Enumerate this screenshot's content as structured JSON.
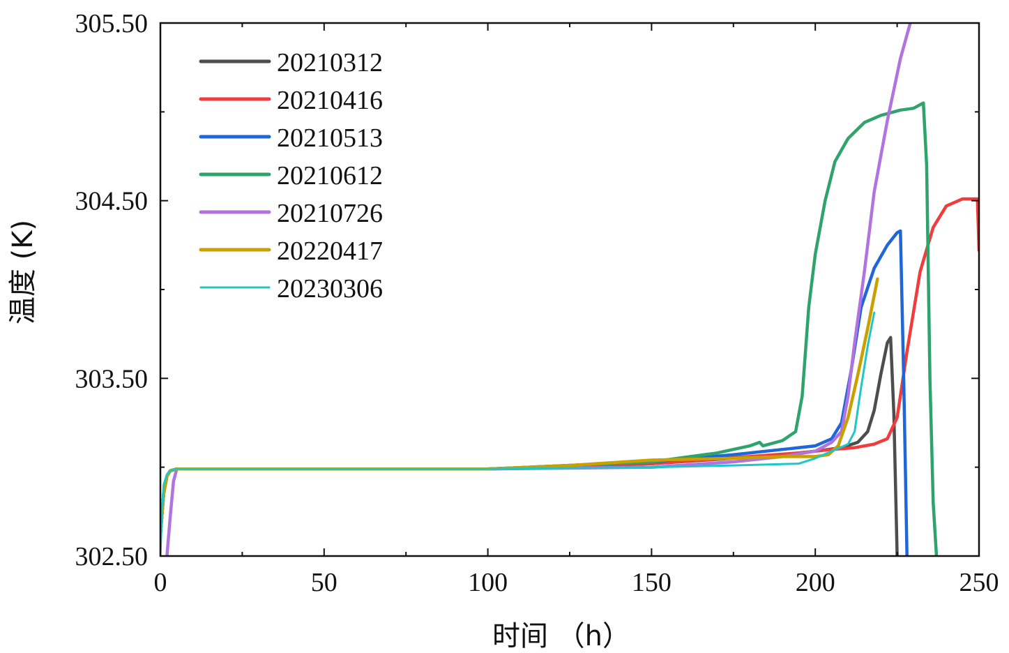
{
  "chart_data": {
    "type": "line",
    "title": "",
    "xlabel": "时间 （h）",
    "ylabel": "温度 (K)",
    "xlim": [
      0,
      250
    ],
    "ylim": [
      302.5,
      305.5
    ],
    "xticks": [
      0,
      50,
      100,
      150,
      200,
      250
    ],
    "yticks": [
      302.5,
      303.5,
      304.5,
      305.5
    ],
    "xtick_labels": [
      "0",
      "50",
      "100",
      "150",
      "200",
      "250"
    ],
    "ytick_labels": [
      "302.50",
      "303.50",
      "304.50",
      "305.50"
    ],
    "grid": false,
    "legend_position": "top-left",
    "series": [
      {
        "name": "20210312",
        "color": "#4d4d4d",
        "x": [
          0,
          1,
          2,
          3,
          5,
          20,
          50,
          100,
          150,
          175,
          190,
          200,
          208,
          213,
          216,
          218,
          220,
          222,
          223,
          224,
          225
        ],
        "y": [
          302.62,
          302.85,
          302.95,
          302.98,
          302.99,
          302.99,
          302.99,
          302.99,
          303.02,
          303.05,
          303.07,
          303.09,
          303.11,
          303.14,
          303.2,
          303.32,
          303.52,
          303.7,
          303.73,
          303.3,
          302.5
        ]
      },
      {
        "name": "20210416",
        "color": "#f03c3c",
        "x": [
          0,
          1,
          2,
          3,
          5,
          20,
          50,
          100,
          150,
          180,
          195,
          205,
          212,
          218,
          222,
          225,
          228,
          232,
          236,
          240,
          245,
          249.5,
          250
        ],
        "y": [
          302.62,
          302.85,
          302.95,
          302.98,
          302.99,
          302.99,
          302.99,
          302.99,
          303.02,
          303.06,
          303.08,
          303.1,
          303.11,
          303.13,
          303.16,
          303.28,
          303.65,
          304.1,
          304.35,
          304.47,
          304.51,
          304.51,
          304.22
        ]
      },
      {
        "name": "20210513",
        "color": "#1f66d6",
        "x": [
          0,
          1,
          2,
          3,
          5,
          20,
          50,
          100,
          150,
          175,
          190,
          200,
          205,
          208,
          211,
          214,
          218,
          222,
          225,
          226,
          227,
          228
        ],
        "y": [
          302.62,
          302.85,
          302.95,
          302.98,
          302.99,
          302.99,
          302.99,
          302.99,
          303.03,
          303.07,
          303.1,
          303.12,
          303.16,
          303.25,
          303.55,
          303.9,
          304.12,
          304.25,
          304.32,
          304.33,
          303.5,
          302.5
        ]
      },
      {
        "name": "20210612",
        "color": "#2ea36b",
        "x": [
          0,
          1,
          2,
          3,
          5,
          20,
          50,
          100,
          150,
          170,
          180,
          183,
          184,
          190,
          194,
          196,
          198,
          200,
          203,
          206,
          210,
          215,
          220,
          226,
          230,
          233,
          234,
          235,
          236,
          237
        ],
        "y": [
          302.62,
          302.85,
          302.95,
          302.98,
          302.99,
          302.99,
          302.99,
          302.99,
          303.03,
          303.08,
          303.12,
          303.14,
          303.12,
          303.15,
          303.2,
          303.4,
          303.9,
          304.2,
          304.5,
          304.72,
          304.85,
          304.94,
          304.98,
          305.01,
          305.02,
          305.05,
          304.7,
          303.5,
          302.8,
          302.5
        ]
      },
      {
        "name": "20210726",
        "color": "#b073df",
        "x": [
          2,
          3,
          4,
          5,
          8,
          20,
          50,
          100,
          150,
          175,
          190,
          200,
          205,
          208,
          210,
          212,
          215,
          218,
          222,
          226,
          229
        ],
        "y": [
          302.5,
          302.72,
          302.92,
          302.99,
          302.99,
          302.99,
          302.99,
          302.99,
          303.0,
          303.03,
          303.06,
          303.09,
          303.14,
          303.2,
          303.4,
          303.7,
          304.1,
          304.55,
          304.95,
          305.3,
          305.5
        ]
      },
      {
        "name": "20220417",
        "color": "#c9a000",
        "x": [
          0,
          1,
          2,
          3,
          5,
          20,
          50,
          100,
          125,
          150,
          175,
          190,
          200,
          204,
          207,
          210,
          213,
          216,
          219
        ],
        "y": [
          302.62,
          302.85,
          302.95,
          302.98,
          302.99,
          302.99,
          302.99,
          302.99,
          303.01,
          303.04,
          303.05,
          303.06,
          303.06,
          303.07,
          303.12,
          303.28,
          303.52,
          303.78,
          304.06
        ]
      },
      {
        "name": "20230306",
        "color": "#1fc6c6",
        "x": [
          0,
          0.5,
          1,
          2,
          3,
          5,
          20,
          50,
          100,
          150,
          175,
          195,
          200,
          205,
          210,
          212,
          214,
          216,
          218
        ],
        "y": [
          302.5,
          302.75,
          302.9,
          302.96,
          302.98,
          302.99,
          302.99,
          302.99,
          302.99,
          303.0,
          303.01,
          303.02,
          303.05,
          303.09,
          303.13,
          303.2,
          303.45,
          303.68,
          303.87
        ]
      }
    ]
  }
}
